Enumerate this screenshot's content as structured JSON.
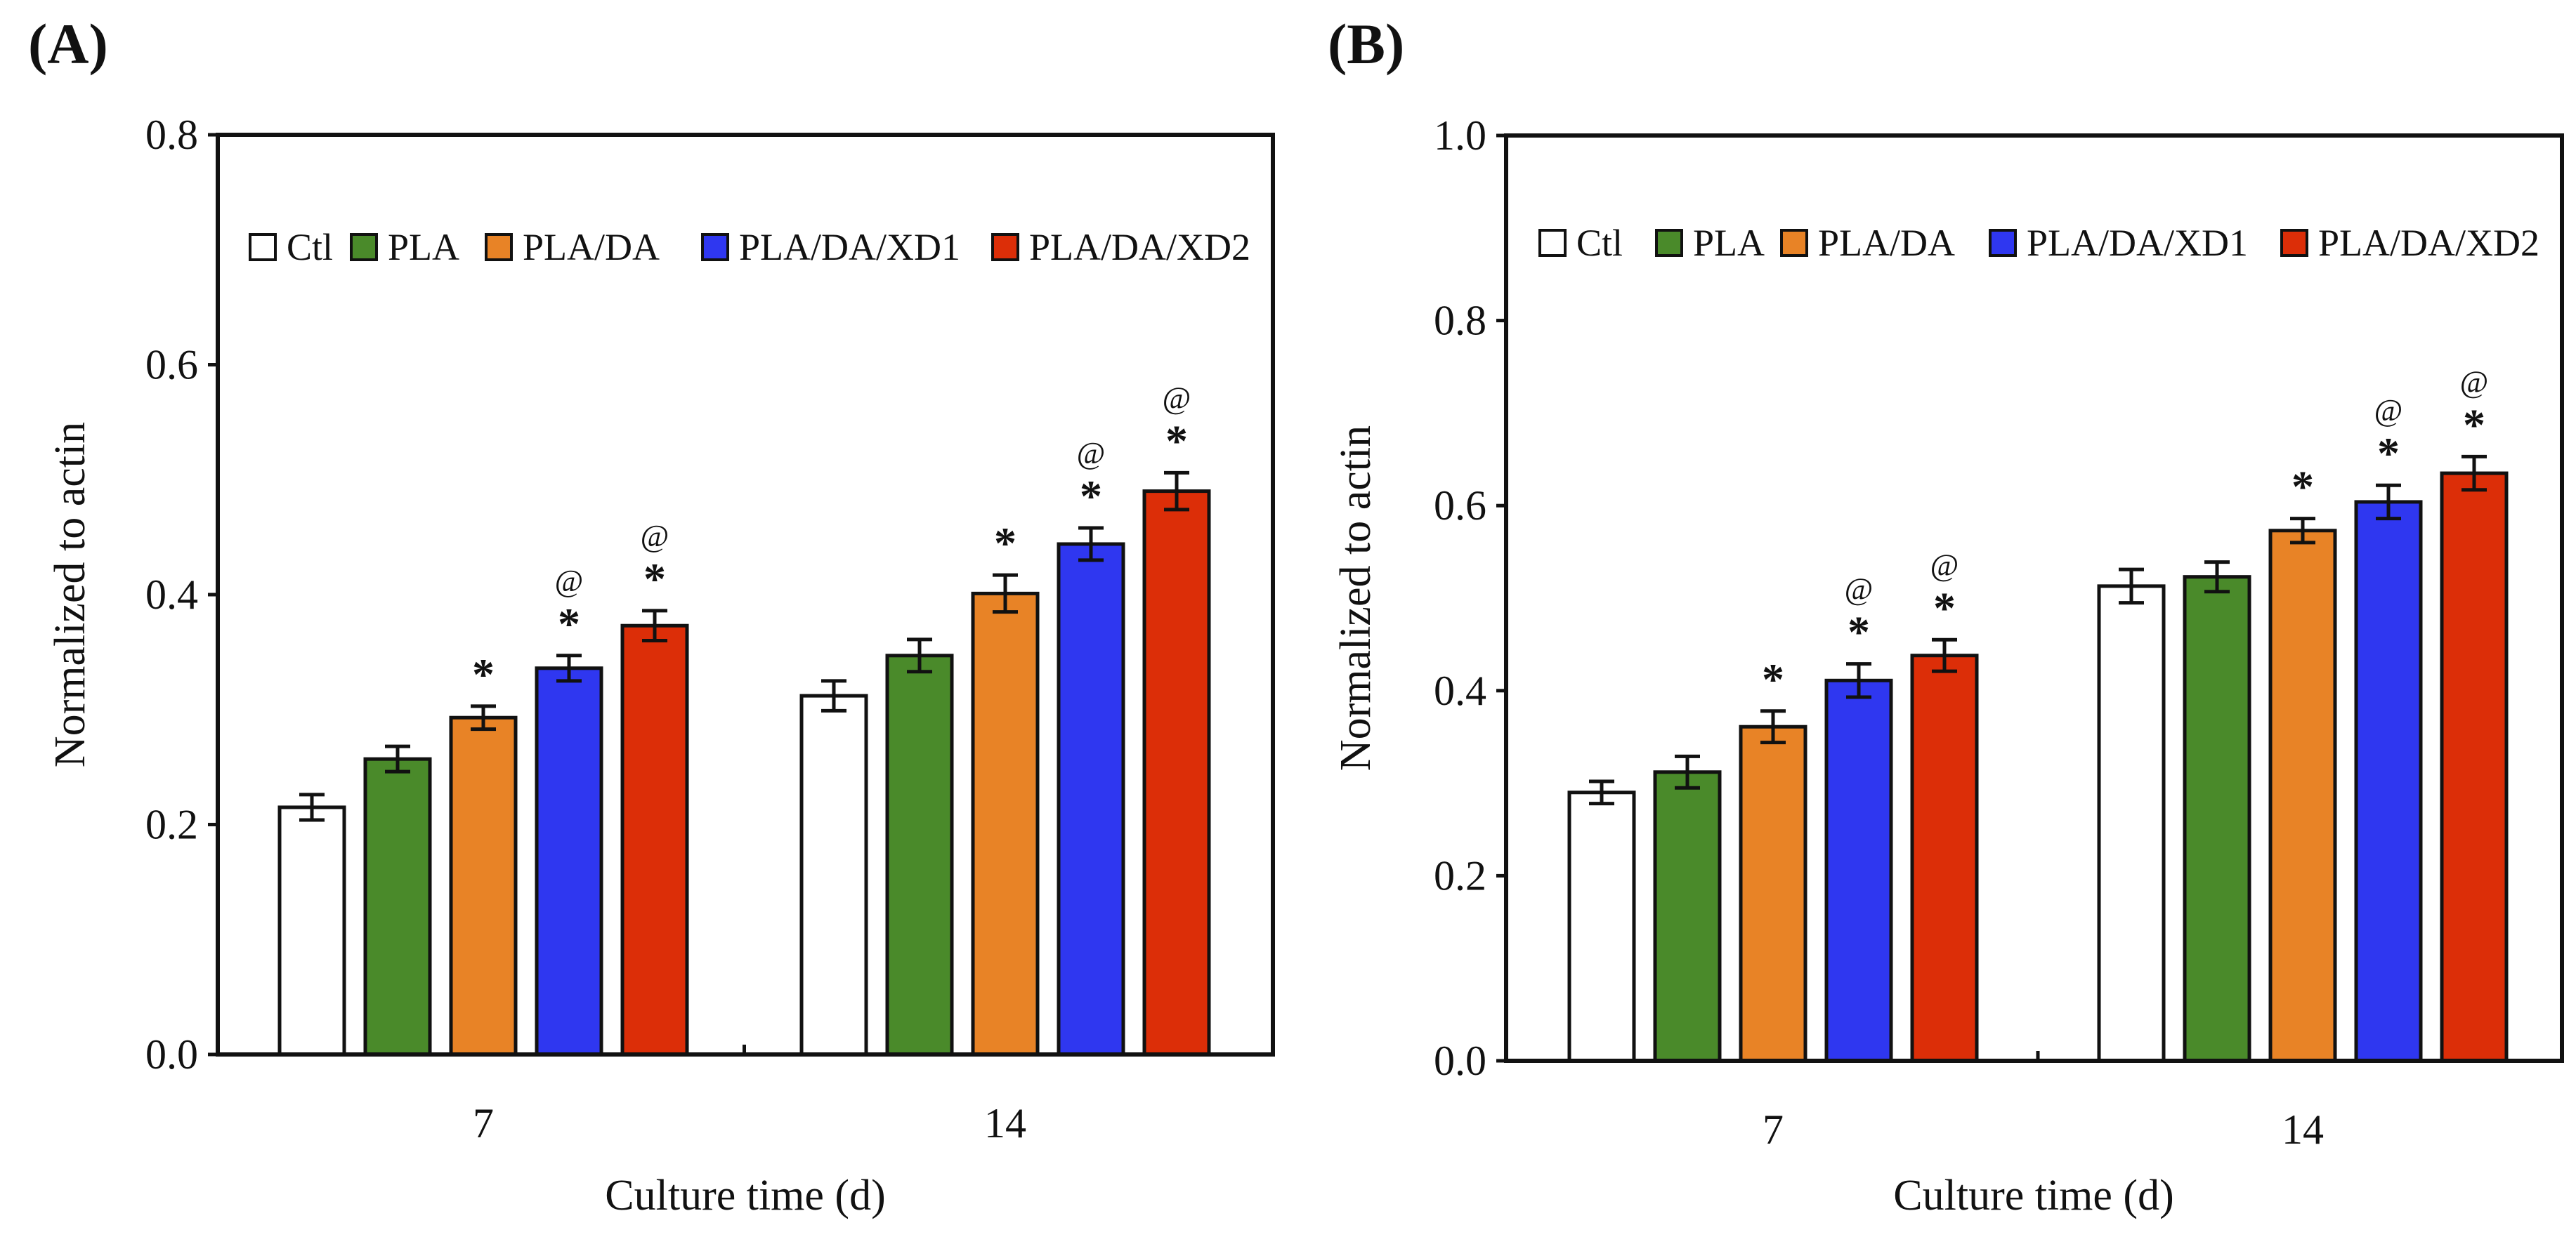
{
  "chart_data": [
    {
      "panel": "(A)",
      "type": "bar",
      "xlabel": "Culture time (d)",
      "ylabel": "Normalized to actin",
      "ylim": [
        0,
        0.8
      ],
      "yticks": [
        "0.0",
        "0.2",
        "0.4",
        "0.6",
        "0.8"
      ],
      "categories": [
        "7",
        "14"
      ],
      "legend_position": "top",
      "series": [
        {
          "name": "Ctl",
          "color": "#ffffff",
          "values": [
            0.215,
            0.312
          ],
          "errors": [
            0.011,
            0.013
          ],
          "marks": [
            [
              "",
              ""
            ],
            [
              "",
              ""
            ]
          ]
        },
        {
          "name": "PLA",
          "color": "#4a8a2a",
          "values": [
            0.257,
            0.347
          ],
          "errors": [
            0.011,
            0.014
          ],
          "marks": [
            [
              "",
              ""
            ],
            [
              "",
              ""
            ]
          ]
        },
        {
          "name": "PLA/DA",
          "color": "#e88326",
          "values": [
            0.293,
            0.401
          ],
          "errors": [
            0.01,
            0.016
          ],
          "marks": [
            [
              "*",
              ""
            ],
            [
              "*",
              ""
            ]
          ]
        },
        {
          "name": "PLA/DA/XD1",
          "color": "#2f37f0",
          "values": [
            0.336,
            0.444
          ],
          "errors": [
            0.011,
            0.014
          ],
          "marks": [
            [
              "*",
              "@"
            ],
            [
              "*",
              "@"
            ]
          ]
        },
        {
          "name": "PLA/DA/XD2",
          "color": "#dc2e08",
          "values": [
            0.373,
            0.49
          ],
          "errors": [
            0.013,
            0.016
          ],
          "marks": [
            [
              "*",
              "@"
            ],
            [
              "*",
              "@"
            ]
          ]
        }
      ]
    },
    {
      "panel": "(B)",
      "type": "bar",
      "xlabel": "Culture time (d)",
      "ylabel": "Normalized to actin",
      "ylim": [
        0,
        1.0
      ],
      "yticks": [
        "0.0",
        "0.2",
        "0.4",
        "0.6",
        "0.8",
        "1.0"
      ],
      "categories": [
        "7",
        "14"
      ],
      "legend_position": "top",
      "series": [
        {
          "name": "Ctl",
          "color": "#ffffff",
          "values": [
            0.29,
            0.513
          ],
          "errors": [
            0.012,
            0.018
          ],
          "marks": [
            [
              "",
              ""
            ],
            [
              "",
              ""
            ]
          ]
        },
        {
          "name": "PLA",
          "color": "#4a8a2a",
          "values": [
            0.312,
            0.523
          ],
          "errors": [
            0.017,
            0.016
          ],
          "marks": [
            [
              "",
              ""
            ],
            [
              "",
              ""
            ]
          ]
        },
        {
          "name": "PLA/DA",
          "color": "#e88326",
          "values": [
            0.361,
            0.573
          ],
          "errors": [
            0.017,
            0.013
          ],
          "marks": [
            [
              "*",
              ""
            ],
            [
              "*",
              ""
            ]
          ]
        },
        {
          "name": "PLA/DA/XD1",
          "color": "#2f37f0",
          "values": [
            0.411,
            0.604
          ],
          "errors": [
            0.018,
            0.018
          ],
          "marks": [
            [
              "*",
              "@"
            ],
            [
              "*",
              "@"
            ]
          ]
        },
        {
          "name": "PLA/DA/XD2",
          "color": "#dc2e08",
          "values": [
            0.438,
            0.635
          ],
          "errors": [
            0.017,
            0.018
          ],
          "marks": [
            [
              "*",
              "@"
            ],
            [
              "*",
              "@"
            ]
          ]
        }
      ]
    }
  ]
}
